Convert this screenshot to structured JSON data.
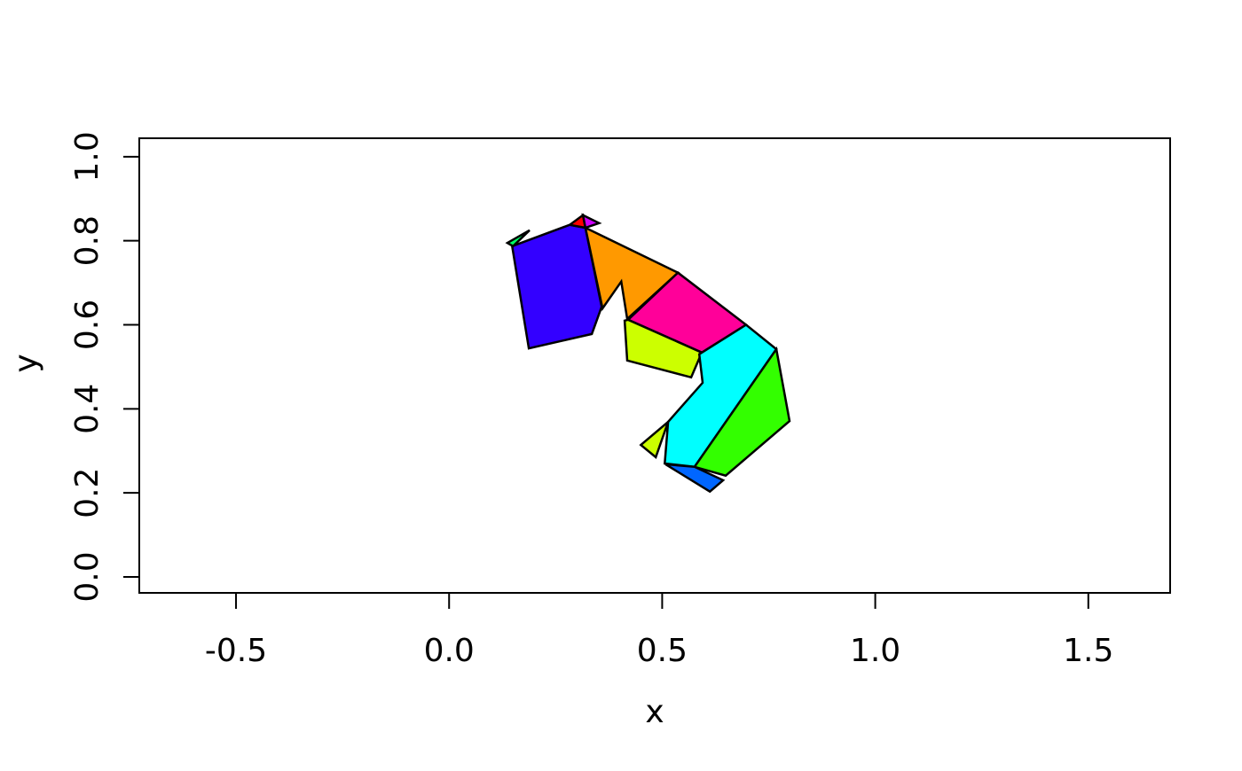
{
  "figure": {
    "background": "#FFFFFF",
    "frame_color": "#000000",
    "polygon_border_color": "#000000"
  },
  "axes": {
    "x_label": "x",
    "y_label": "y",
    "x_tick_labels": [
      "-0.5",
      "0.0",
      "0.5",
      "1.0",
      "1.5"
    ],
    "y_tick_labels": [
      "0.0",
      "0.2",
      "0.4",
      "0.6",
      "0.8",
      "1.0"
    ]
  },
  "chart_data": {
    "type": "polygon",
    "title": "",
    "xlabel": "x",
    "ylabel": "y",
    "xlim": [
      -0.727,
      1.692
    ],
    "ylim": [
      -0.038,
      1.044
    ],
    "x_ticks": [
      -0.5,
      0.0,
      0.5,
      1.0,
      1.5
    ],
    "y_ticks": [
      0.0,
      0.2,
      0.4,
      0.6,
      0.8,
      1.0
    ],
    "grid": false,
    "legend": false,
    "frame": true,
    "palette": [
      "#FF0000",
      "#FF9900",
      "#CCFF00",
      "#33FF00",
      "#00FF66",
      "#00FFFF",
      "#0066FF",
      "#3300FF",
      "#CC00FF",
      "#FF0099"
    ],
    "polygons": [
      {
        "name": "indigo-polygon",
        "color": "#3300FF",
        "points": [
          [
            0.148,
            0.787
          ],
          [
            0.283,
            0.838
          ],
          [
            0.32,
            0.831
          ],
          [
            0.358,
            0.643
          ],
          [
            0.335,
            0.578
          ],
          [
            0.187,
            0.544
          ]
        ]
      },
      {
        "name": "springgreen-sliver",
        "color": "#00FF66",
        "points": [
          [
            0.137,
            0.795
          ],
          [
            0.189,
            0.825
          ],
          [
            0.15,
            0.787
          ]
        ]
      },
      {
        "name": "red-triangle",
        "color": "#FF0000",
        "points": [
          [
            0.283,
            0.838
          ],
          [
            0.314,
            0.861
          ],
          [
            0.32,
            0.831
          ]
        ]
      },
      {
        "name": "purple-triangle",
        "color": "#CC00FF",
        "points": [
          [
            0.314,
            0.861
          ],
          [
            0.352,
            0.842
          ],
          [
            0.32,
            0.831
          ]
        ]
      },
      {
        "name": "orange-polygon",
        "color": "#FF9900",
        "points": [
          [
            0.32,
            0.831
          ],
          [
            0.537,
            0.724
          ],
          [
            0.418,
            0.614
          ],
          [
            0.404,
            0.703
          ],
          [
            0.36,
            0.639
          ]
        ]
      },
      {
        "name": "pink-polygon",
        "color": "#FF0099",
        "points": [
          [
            0.42,
            0.612
          ],
          [
            0.537,
            0.724
          ],
          [
            0.697,
            0.6
          ],
          [
            0.593,
            0.534
          ]
        ]
      },
      {
        "name": "chartreuse-polygon",
        "color": "#CCFF00",
        "points": [
          [
            0.412,
            0.61
          ],
          [
            0.42,
            0.612
          ],
          [
            0.593,
            0.534
          ],
          [
            0.568,
            0.475
          ],
          [
            0.418,
            0.515
          ]
        ]
      },
      {
        "name": "cyan-polygon",
        "color": "#00FFFF",
        "points": [
          [
            0.587,
            0.53
          ],
          [
            0.697,
            0.6
          ],
          [
            0.768,
            0.542
          ],
          [
            0.576,
            0.262
          ],
          [
            0.506,
            0.27
          ],
          [
            0.514,
            0.369
          ],
          [
            0.595,
            0.462
          ]
        ]
      },
      {
        "name": "green-polygon",
        "color": "#33FF00",
        "points": [
          [
            0.768,
            0.542
          ],
          [
            0.799,
            0.371
          ],
          [
            0.649,
            0.241
          ],
          [
            0.576,
            0.262
          ]
        ]
      },
      {
        "name": "chartreuse-small-triangle",
        "color": "#CCFF00",
        "points": [
          [
            0.45,
            0.314
          ],
          [
            0.514,
            0.369
          ],
          [
            0.485,
            0.285
          ]
        ]
      },
      {
        "name": "blue-polygon",
        "color": "#0066FF",
        "points": [
          [
            0.508,
            0.268
          ],
          [
            0.576,
            0.262
          ],
          [
            0.643,
            0.23
          ],
          [
            0.612,
            0.203
          ]
        ]
      }
    ]
  }
}
